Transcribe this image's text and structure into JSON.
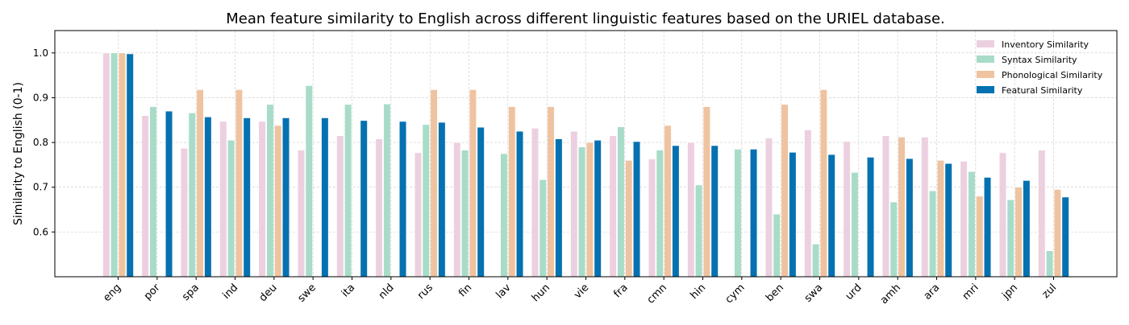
{
  "chart_data": {
    "type": "bar",
    "title": "Mean feature similarity to English across different linguistic features based on the URIEL database.",
    "xlabel": "",
    "ylabel": "Similarity to English (0-1)",
    "ylim": [
      0.5,
      1.05
    ],
    "yticks": [
      "0.6",
      "0.7",
      "0.8",
      "0.9",
      "1.0"
    ],
    "grid": true,
    "legend_position": "top-right",
    "categories": [
      "eng",
      "por",
      "spa",
      "ind",
      "deu",
      "swe",
      "ita",
      "nld",
      "rus",
      "fin",
      "lav",
      "hun",
      "vie",
      "fra",
      "cmn",
      "hin",
      "cym",
      "ben",
      "swa",
      "urd",
      "amh",
      "ara",
      "mri",
      "jpn",
      "zul"
    ],
    "series": [
      {
        "name": "Inventory Similarity",
        "color": "#ecd0e0",
        "values": [
          1.0,
          0.86,
          0.787,
          0.847,
          0.847,
          0.783,
          0.815,
          0.808,
          0.777,
          0.8,
          null,
          0.832,
          0.825,
          0.815,
          0.763,
          0.8,
          null,
          0.81,
          0.828,
          0.802,
          0.815,
          0.812,
          0.758,
          0.777,
          0.783
        ]
      },
      {
        "name": "Syntax Similarity",
        "color": "#a8dcc8",
        "values": [
          1.0,
          0.88,
          0.866,
          0.805,
          0.885,
          0.927,
          0.885,
          0.886,
          0.84,
          0.783,
          0.775,
          0.717,
          0.79,
          0.835,
          0.783,
          0.705,
          0.785,
          0.64,
          0.573,
          0.733,
          0.667,
          0.692,
          0.735,
          0.672,
          0.558
        ]
      },
      {
        "name": "Phonological Similarity",
        "color": "#efc3a0",
        "values": [
          1.0,
          null,
          0.918,
          0.918,
          0.838,
          null,
          null,
          null,
          0.918,
          0.918,
          0.88,
          0.88,
          0.8,
          0.76,
          0.838,
          0.88,
          null,
          0.885,
          0.918,
          null,
          0.812,
          0.76,
          0.68,
          0.7,
          0.695
        ]
      },
      {
        "name": "Featural Similarity",
        "color": "#0571b0",
        "values": [
          0.998,
          0.87,
          0.857,
          0.855,
          0.855,
          0.855,
          0.849,
          0.847,
          0.845,
          0.834,
          0.825,
          0.808,
          0.805,
          0.802,
          0.793,
          0.793,
          0.785,
          0.778,
          0.773,
          0.767,
          0.764,
          0.753,
          0.722,
          0.715,
          0.678
        ]
      }
    ]
  }
}
